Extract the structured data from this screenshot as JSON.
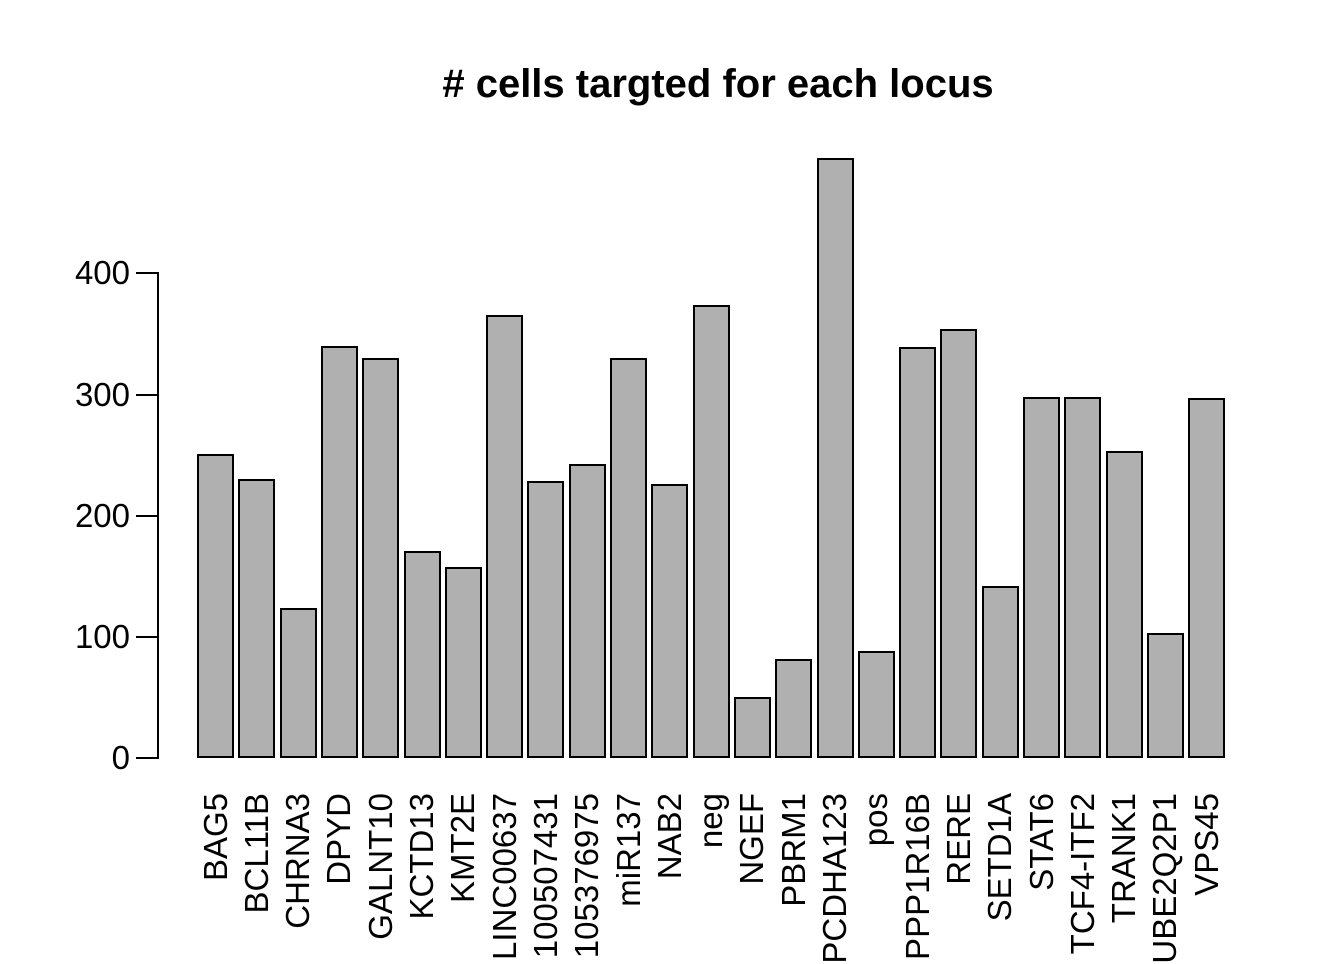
{
  "chart_data": {
    "type": "bar",
    "title": "# cells targted for each locus",
    "categories": [
      "BAG5",
      "BCL11B",
      "CHRNA3",
      "DPYD",
      "GALNT10",
      "KCTD13",
      "KMT2E",
      "LINC00637",
      "100507431",
      "105376975",
      "miR137",
      "NAB2",
      "neg",
      "NGEF",
      "PBRM1",
      "PCDHA123",
      "pos",
      "PPP1R16B",
      "RERE",
      "SETD1A",
      "STAT6",
      "TCF4-ITF2",
      "TRANK1",
      "UBE2Q2P1",
      "VPS45"
    ],
    "values": [
      251,
      230,
      124,
      340,
      330,
      171,
      158,
      366,
      229,
      243,
      330,
      226,
      374,
      50,
      82,
      495,
      88,
      339,
      354,
      142,
      298,
      298,
      253,
      103,
      297
    ],
    "xlabel": "",
    "ylabel": "",
    "yticks": [
      0,
      100,
      200,
      300,
      400
    ],
    "ylim": [
      0,
      400
    ],
    "grid": false,
    "legend": false,
    "x_label_rotation": 90,
    "bar_fill": "#B0B0B0",
    "bar_border": "#000000"
  },
  "colors": {
    "background": "#FFFFFF",
    "text": "#000000",
    "axis": "#000000"
  }
}
